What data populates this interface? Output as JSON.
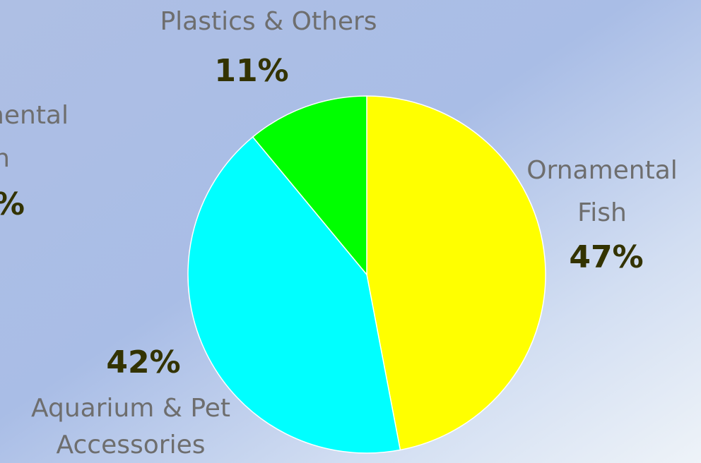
{
  "chart_data": {
    "type": "pie",
    "categories": [
      "Ornamental\nFish",
      "Aquarium & Pet\nAccessories",
      "Plastics & Others"
    ],
    "values": [
      47,
      42,
      11
    ],
    "value_labels": [
      "47%",
      "42%",
      "11%"
    ],
    "colors": [
      "#ffff00",
      "#00ffff",
      "#00ff00"
    ],
    "annotations": [
      "Ornamental",
      "Fish",
      "47%"
    ]
  }
}
